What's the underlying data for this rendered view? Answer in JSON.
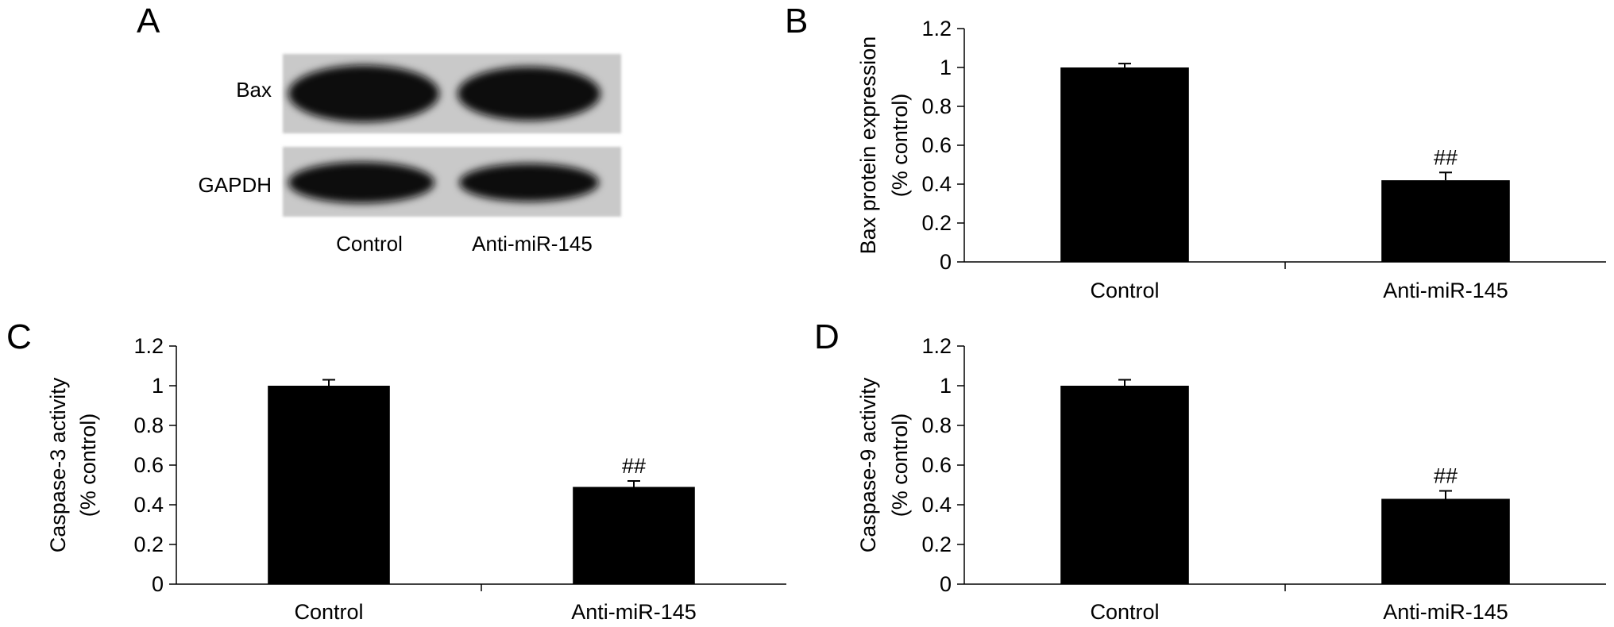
{
  "panels": {
    "a": {
      "letter": "A"
    },
    "b": {
      "letter": "B"
    },
    "c": {
      "letter": "C"
    },
    "d": {
      "letter": "D"
    }
  },
  "blot": {
    "rows": [
      "Bax",
      "GAPDH"
    ],
    "lanes": [
      "Control",
      "Anti-miR-145"
    ]
  },
  "chart_data": [
    {
      "panel": "B",
      "type": "bar",
      "categories": [
        "Control",
        "Anti-miR-145"
      ],
      "values": [
        1.0,
        0.42
      ],
      "errors": [
        0.02,
        0.04
      ],
      "annotations": [
        "",
        "##"
      ],
      "title": "",
      "xlabel": "",
      "ylabel": [
        "Bax protein expression",
        "(% control)"
      ],
      "ylim": [
        0,
        1.2
      ],
      "yticks": [
        "0",
        "0.2",
        "0.4",
        "0.6",
        "0.8",
        "1",
        "1.2"
      ],
      "grid": false,
      "bar_color": "#000000"
    },
    {
      "panel": "C",
      "type": "bar",
      "categories": [
        "Control",
        "Anti-miR-145"
      ],
      "values": [
        1.0,
        0.49
      ],
      "errors": [
        0.03,
        0.03
      ],
      "annotations": [
        "",
        "##"
      ],
      "title": "",
      "xlabel": "",
      "ylabel": [
        "Caspase-3 activity",
        "(% control)"
      ],
      "ylim": [
        0,
        1.2
      ],
      "yticks": [
        "0",
        "0.2",
        "0.4",
        "0.6",
        "0.8",
        "1",
        "1.2"
      ],
      "grid": false,
      "bar_color": "#000000"
    },
    {
      "panel": "D",
      "type": "bar",
      "categories": [
        "Control",
        "Anti-miR-145"
      ],
      "values": [
        1.0,
        0.43
      ],
      "errors": [
        0.03,
        0.04
      ],
      "annotations": [
        "",
        "##"
      ],
      "title": "",
      "xlabel": "",
      "ylabel": [
        "Caspase-9 activity",
        "(% control)"
      ],
      "ylim": [
        0,
        1.2
      ],
      "yticks": [
        "0",
        "0.2",
        "0.4",
        "0.6",
        "0.8",
        "1",
        "1.2"
      ],
      "grid": false,
      "bar_color": "#000000"
    }
  ]
}
